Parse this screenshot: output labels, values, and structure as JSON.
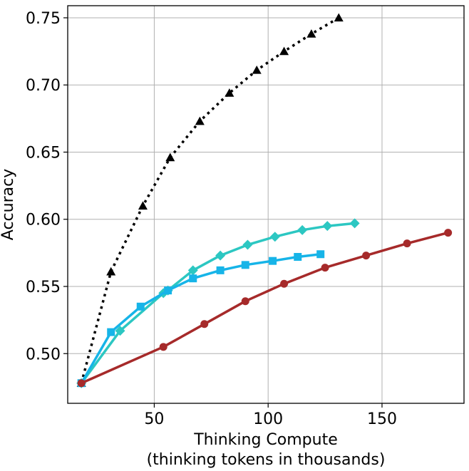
{
  "chart_data": {
    "type": "line",
    "title": "",
    "xlabel_line1": "Thinking Compute",
    "xlabel_line2": "(thinking tokens in thousands)",
    "ylabel": "Accuracy",
    "xlim": [
      12,
      186
    ],
    "ylim": [
      0.463,
      0.759
    ],
    "xticks": [
      50,
      100,
      150
    ],
    "xtick_labels": [
      "50",
      "100",
      "150"
    ],
    "yticks": [
      0.5,
      0.55,
      0.6,
      0.65,
      0.7,
      0.75
    ],
    "ytick_labels": [
      "0.50",
      "0.55",
      "0.60",
      "0.65",
      "0.70",
      "0.75"
    ],
    "grid": true,
    "legend": "none",
    "series": [
      {
        "color": "#000000",
        "marker": "triangle",
        "line_style": "dotted",
        "x": [
          18,
          31,
          45,
          57,
          70,
          83,
          95,
          107,
          119,
          131
        ],
        "y": [
          0.478,
          0.561,
          0.61,
          0.646,
          0.673,
          0.694,
          0.711,
          0.725,
          0.738,
          0.75
        ]
      },
      {
        "color": "#2cc7c2",
        "marker": "diamond",
        "line_style": "solid",
        "x": [
          18,
          35,
          54,
          56,
          67,
          79,
          91,
          103,
          115,
          126,
          138
        ],
        "y": [
          0.478,
          0.517,
          0.545,
          0.547,
          0.562,
          0.573,
          0.581,
          0.587,
          0.592,
          0.595,
          0.597
        ]
      },
      {
        "color": "#16b4e8",
        "marker": "square",
        "line_style": "solid",
        "x": [
          18,
          31,
          44,
          56,
          67,
          79,
          90,
          102,
          113,
          123
        ],
        "y": [
          0.478,
          0.516,
          0.535,
          0.547,
          0.556,
          0.562,
          0.566,
          0.569,
          0.572,
          0.574
        ]
      },
      {
        "color": "#a62a2a",
        "marker": "circle",
        "line_style": "solid",
        "x": [
          18,
          54,
          72,
          90,
          107,
          125,
          143,
          161,
          179
        ],
        "y": [
          0.478,
          0.505,
          0.522,
          0.539,
          0.552,
          0.564,
          0.573,
          0.582,
          0.59
        ]
      }
    ]
  }
}
